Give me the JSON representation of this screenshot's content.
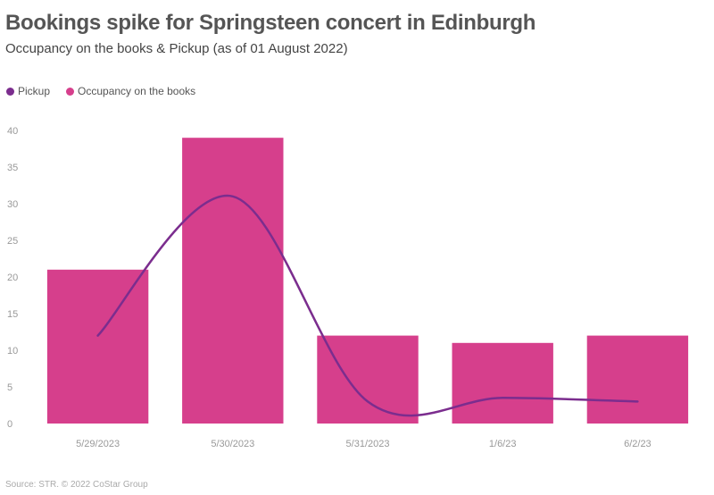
{
  "title": "Bookings spike for Springsteen concert in Edinburgh",
  "subtitle": "Occupancy on the books & Pickup (as of 01 August 2022)",
  "source": "Source: STR. © 2022 CoStar Group",
  "colors": {
    "bars": "#d63f8c",
    "line": "#7b2d8e",
    "grid": "#e6e6e6",
    "title": "#555555"
  },
  "legend": [
    {
      "label": "Pickup",
      "color": "#7b2d8e"
    },
    {
      "label": "Occupancy on the books",
      "color": "#d63f8c"
    }
  ],
  "chart_data": {
    "type": "bar+line",
    "title": "Bookings spike for Springsteen concert in Edinburgh",
    "subtitle": "Occupancy on the books & Pickup (as of 01 August 2022)",
    "categories": [
      "5/29/2023",
      "5/30/2023",
      "5/31/2023",
      "1/6/23",
      "6/2/23"
    ],
    "series": [
      {
        "name": "Occupancy on the books",
        "type": "bar",
        "values": [
          21,
          39,
          12,
          11,
          12
        ]
      },
      {
        "name": "Pickup",
        "type": "line",
        "smooth": true,
        "values": [
          12,
          31,
          3,
          3.5,
          3
        ]
      }
    ],
    "yticks": [
      0,
      5,
      10,
      15,
      20,
      25,
      30,
      35,
      40
    ],
    "ylim": [
      0,
      40
    ],
    "xlabel": "",
    "ylabel": "",
    "legend_position": "top-left",
    "grid": false
  }
}
